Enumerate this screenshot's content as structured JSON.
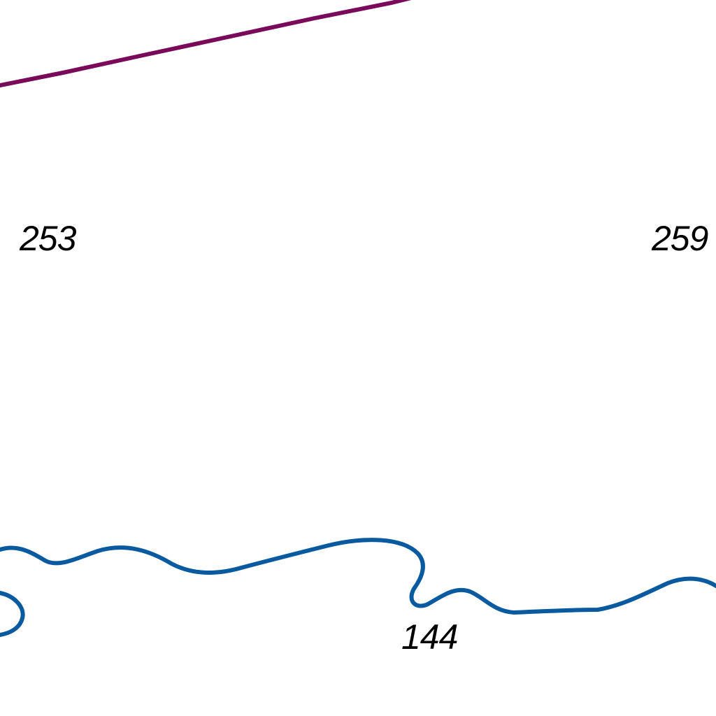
{
  "map": {
    "colors": {
      "background": "#ffffff",
      "boundary_line": "#7a0a5a",
      "river": "#0a5aa0",
      "label_text": "#000000"
    },
    "labels": {
      "spot_height_left": "253",
      "spot_height_right": "259",
      "river_label": "144"
    }
  }
}
